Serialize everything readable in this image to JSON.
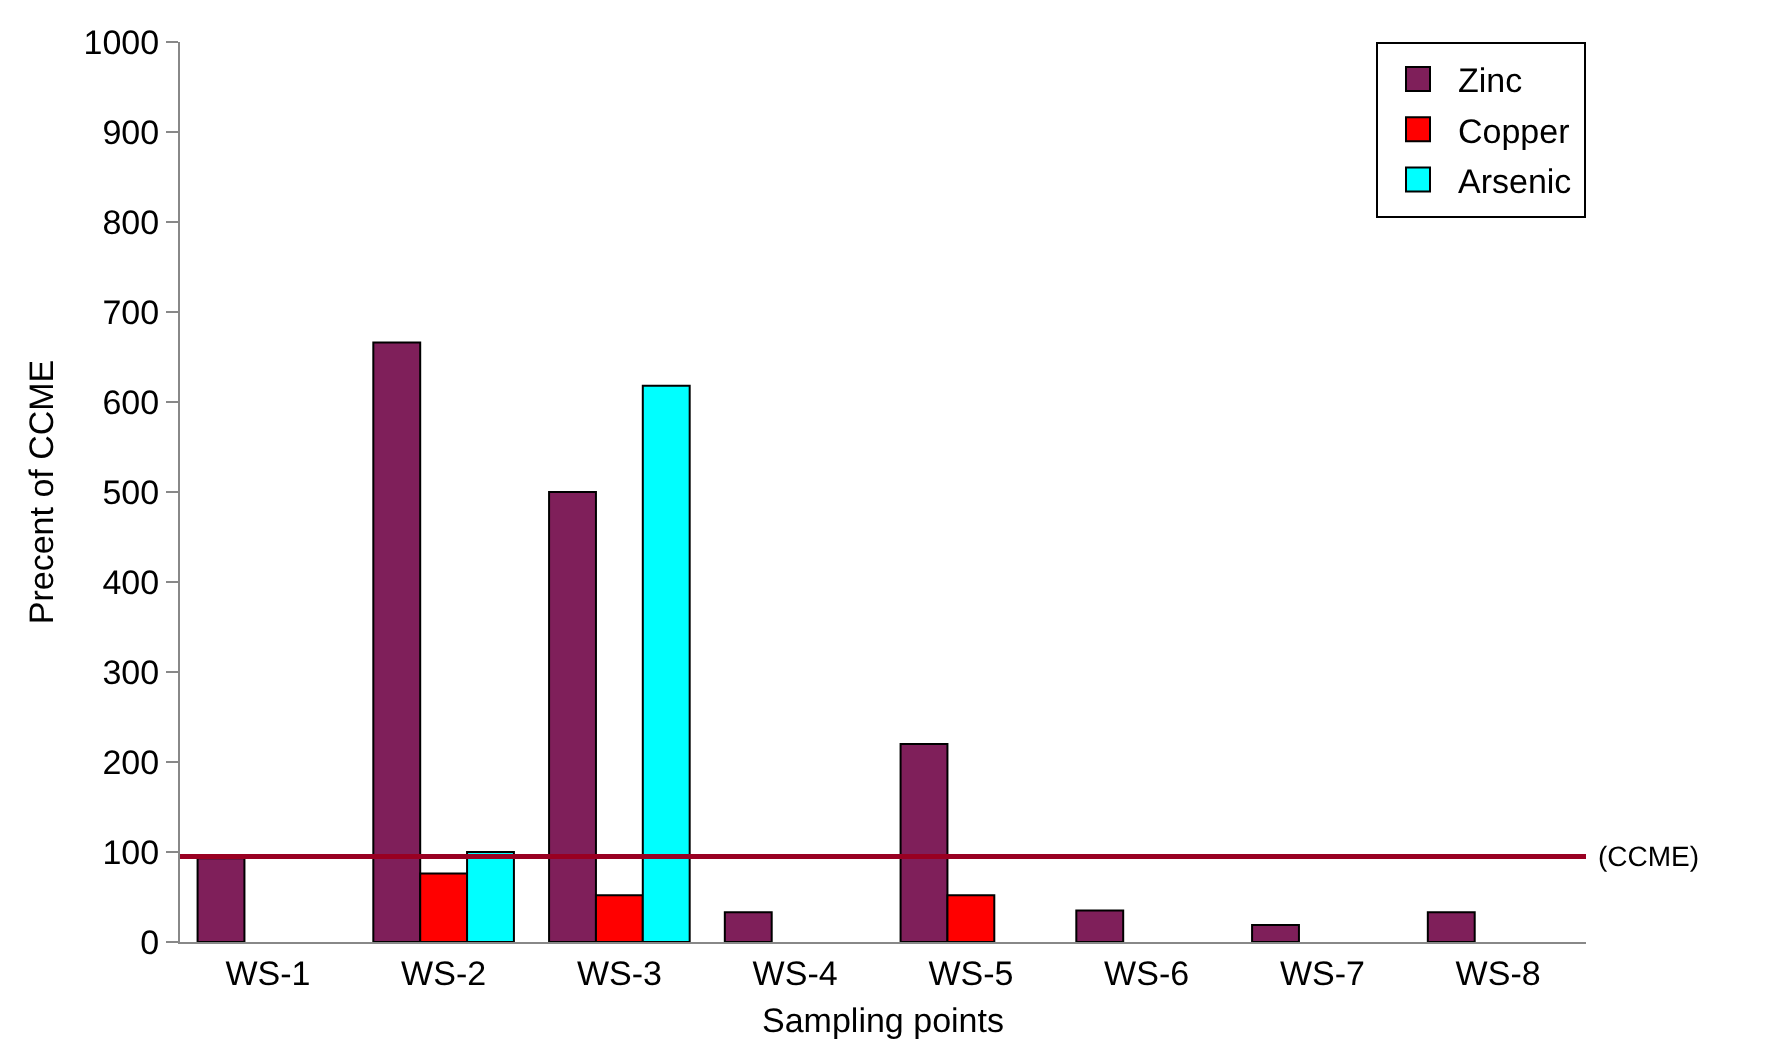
{
  "chart_data": {
    "type": "bar",
    "xlabel": "Sampling points",
    "ylabel": "Precent of CCME",
    "categories": [
      "WS-1",
      "WS-2",
      "WS-3",
      "WS-4",
      "WS-5",
      "WS-6",
      "WS-7",
      "WS-8"
    ],
    "series": [
      {
        "name": "Zinc",
        "color": "#7f1f5a",
        "values": [
          93,
          666,
          500,
          33,
          220,
          35,
          19,
          33
        ]
      },
      {
        "name": "Copper",
        "color": "#ff0000",
        "values": [
          null,
          76,
          52,
          null,
          52,
          null,
          null,
          null
        ]
      },
      {
        "name": "Arsenic",
        "color": "#00ffff",
        "values": [
          null,
          100,
          618,
          null,
          null,
          null,
          null,
          null
        ]
      }
    ],
    "ylim": [
      0,
      1000
    ],
    "yticks": [
      0,
      100,
      200,
      300,
      400,
      500,
      600,
      700,
      800,
      900,
      1000
    ],
    "ref_lines": [
      {
        "axis": "y",
        "value": 95,
        "label": "(CCME)",
        "color": "#990022"
      }
    ],
    "grid": false,
    "legend": "top right"
  }
}
